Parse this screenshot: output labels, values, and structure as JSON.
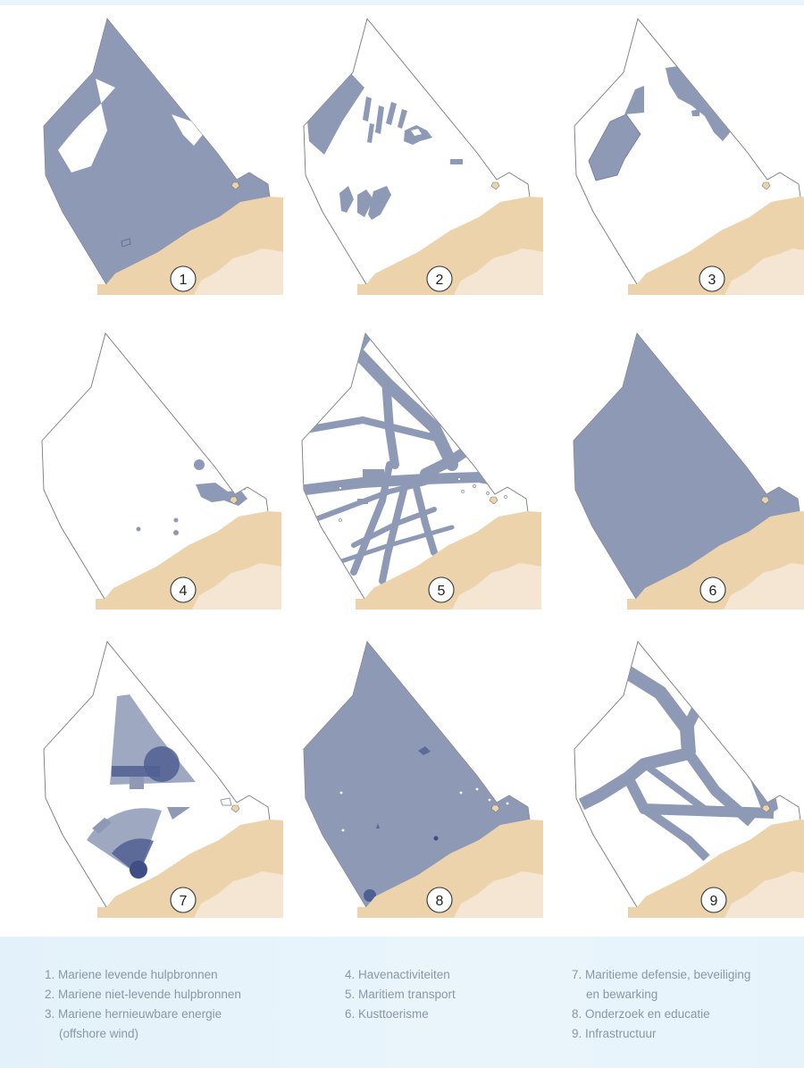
{
  "panels": [
    {
      "number": "1",
      "label": "Mariene levende hulpbronnen"
    },
    {
      "number": "2",
      "label": "Mariene niet-levende hulpbronnen"
    },
    {
      "number": "3",
      "label": "Mariene hernieuwbare energie",
      "label_cont": "(offshore wind)"
    },
    {
      "number": "4",
      "label": "Havenactiviteiten"
    },
    {
      "number": "5",
      "label": "Maritiem transport"
    },
    {
      "number": "6",
      "label": "Kusttoerisme"
    },
    {
      "number": "7",
      "label": "Maritieme defensie, beveiliging",
      "label_cont": "en bewarking"
    },
    {
      "number": "8",
      "label": "Onderzoek en educatie"
    },
    {
      "number": "9",
      "label": "Infrastructuur"
    }
  ],
  "legend": {
    "items": [
      "1. Mariene levende hulpbronnen",
      "2. Mariene niet-levende hulpbronnen",
      "3. Mariene hernieuwbare energie",
      "(offshore wind)",
      "4. Havenactiviteiten",
      "5. Maritiem transport",
      "6. Kusttoerisme",
      "7. Maritieme defensie, beveiliging",
      "en bewarking",
      "8. Onderzoek en educatie",
      "9. Infrastructuur"
    ]
  },
  "colors": {
    "zone": "#8e99b6",
    "zone_dark": "#4f5f92",
    "land": "#ecd3ab",
    "land_inland": "#f4e6d2",
    "outline": "#7a7a7a",
    "legend_text": "#8a97a6"
  },
  "icons": [
    "numbered-circle-badge"
  ]
}
